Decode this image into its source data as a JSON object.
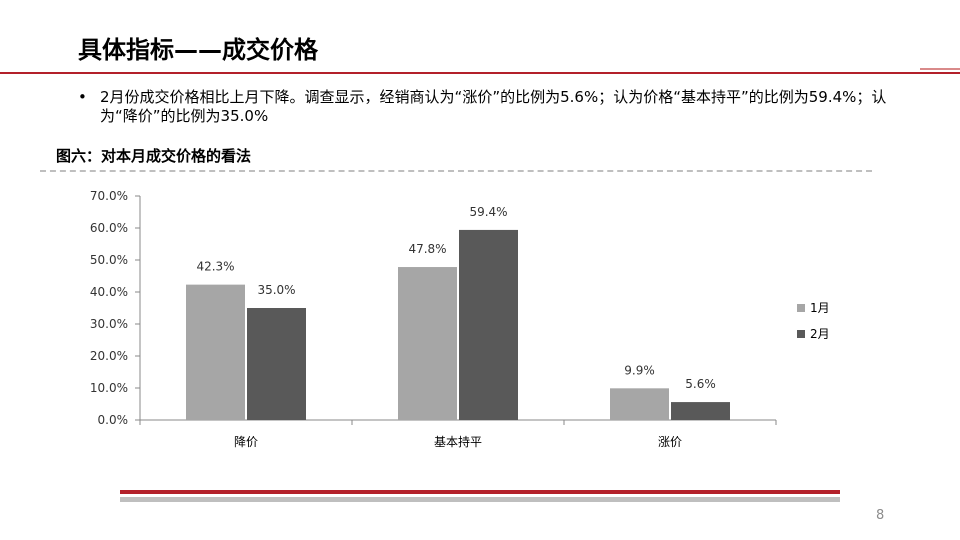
{
  "slide": {
    "title": "具体指标——成交价格",
    "bullet_marker": "•",
    "bullet_text": "2月份成交价格相比上月下降。调查显示，经销商认为“涨价”的比例为5.6%；认为价格“基本持平”的比例为59.4%；认为“降价”的比例为35.0%",
    "chart_caption": "图六：对本月成交价格的看法",
    "page_number": "8"
  },
  "colors": {
    "title_rule": "#b3202a",
    "footer_red": "#b3202a",
    "footer_gray": "#bfbfbf",
    "series_1": "#a6a6a6",
    "series_2": "#595959"
  },
  "chart_data": {
    "type": "bar",
    "categories": [
      "降价",
      "基本持平",
      "涨价"
    ],
    "series": [
      {
        "name": "1月",
        "values": [
          42.3,
          47.8,
          9.9
        ],
        "labels": [
          "42.3%",
          "47.8%",
          "9.9%"
        ],
        "color": "#a6a6a6"
      },
      {
        "name": "2月",
        "values": [
          35.0,
          59.4,
          5.6
        ],
        "labels": [
          "35.0%",
          "59.4%",
          "5.6%"
        ],
        "color": "#595959"
      }
    ],
    "ylim": [
      0,
      70
    ],
    "yticks": [
      0,
      10,
      20,
      30,
      40,
      50,
      60,
      70
    ],
    "ytick_labels": [
      "0.0%",
      "10.0%",
      "20.0%",
      "30.0%",
      "40.0%",
      "50.0%",
      "60.0%",
      "70.0%"
    ],
    "grid": false,
    "legend_position": "right"
  }
}
